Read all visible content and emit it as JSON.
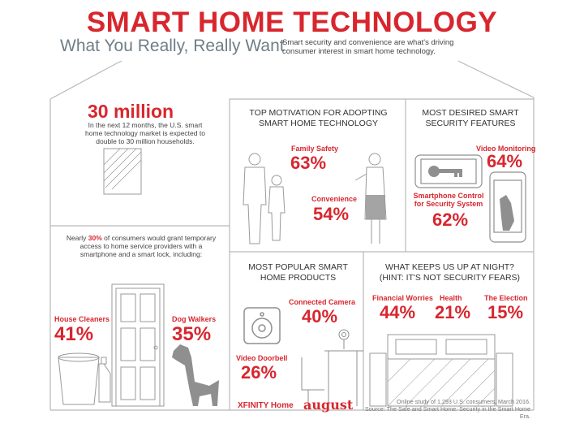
{
  "header": {
    "title": "SMART HOME TECHNOLOGY",
    "subtitle": "What You Really, Really Want",
    "blurb": "Smart security and convenience are what's driving consumer interest in smart home technology."
  },
  "market": {
    "stat": "30 million",
    "text": "In the next 12 months, the U.S. smart home technology market is expected to double to 30 million households."
  },
  "access": {
    "text_pre": "Nearly ",
    "text_pct": "30%",
    "text_post": " of consumers would grant temporary access to home service providers with a smartphone and a smart lock, including:",
    "house_cleaners_label": "House Cleaners",
    "house_cleaners_pct": "41%",
    "dog_walkers_label": "Dog Walkers",
    "dog_walkers_pct": "35%"
  },
  "motivation": {
    "heading_line1": "TOP MOTIVATION FOR ADOPTING",
    "heading_line2": "SMART HOME TECHNOLOGY",
    "family_label": "Family Safety",
    "family_pct": "63%",
    "convenience_label": "Convenience",
    "convenience_pct": "54%"
  },
  "security": {
    "heading_line1": "MOST DESIRED SMART",
    "heading_line2": "SECURITY FEATURES",
    "video_label": "Video Monitoring",
    "video_pct": "64%",
    "phone_label_line1": "Smartphone Control",
    "phone_label_line2": "for Security System",
    "phone_pct": "62%"
  },
  "products": {
    "heading_line1": "MOST POPULAR SMART",
    "heading_line2": "HOME PRODUCTS",
    "camera_label": "Connected Camera",
    "camera_pct": "40%",
    "doorbell_label": "Video Doorbell",
    "doorbell_pct": "26%"
  },
  "night": {
    "heading_line1": "WHAT KEEPS US UP AT NIGHT?",
    "heading_line2": "(HINT: IT'S NOT SECURITY FEARS)",
    "financial_label": "Financial Worries",
    "financial_pct": "44%",
    "health_label": "Health",
    "health_pct": "21%",
    "election_label": "The Election",
    "election_pct": "15%"
  },
  "footer": {
    "xfinity": "XFINITY Home",
    "august": "august",
    "source_line1": "Online study of 1,293 U.S. consumers, March 2016.",
    "source_line2": "Source: The Safe and Smart Home: Security in the Smart Home Era."
  },
  "colors": {
    "accent": "#d8262e",
    "line": "#b9b9b9",
    "text": "#3a3a3a"
  }
}
